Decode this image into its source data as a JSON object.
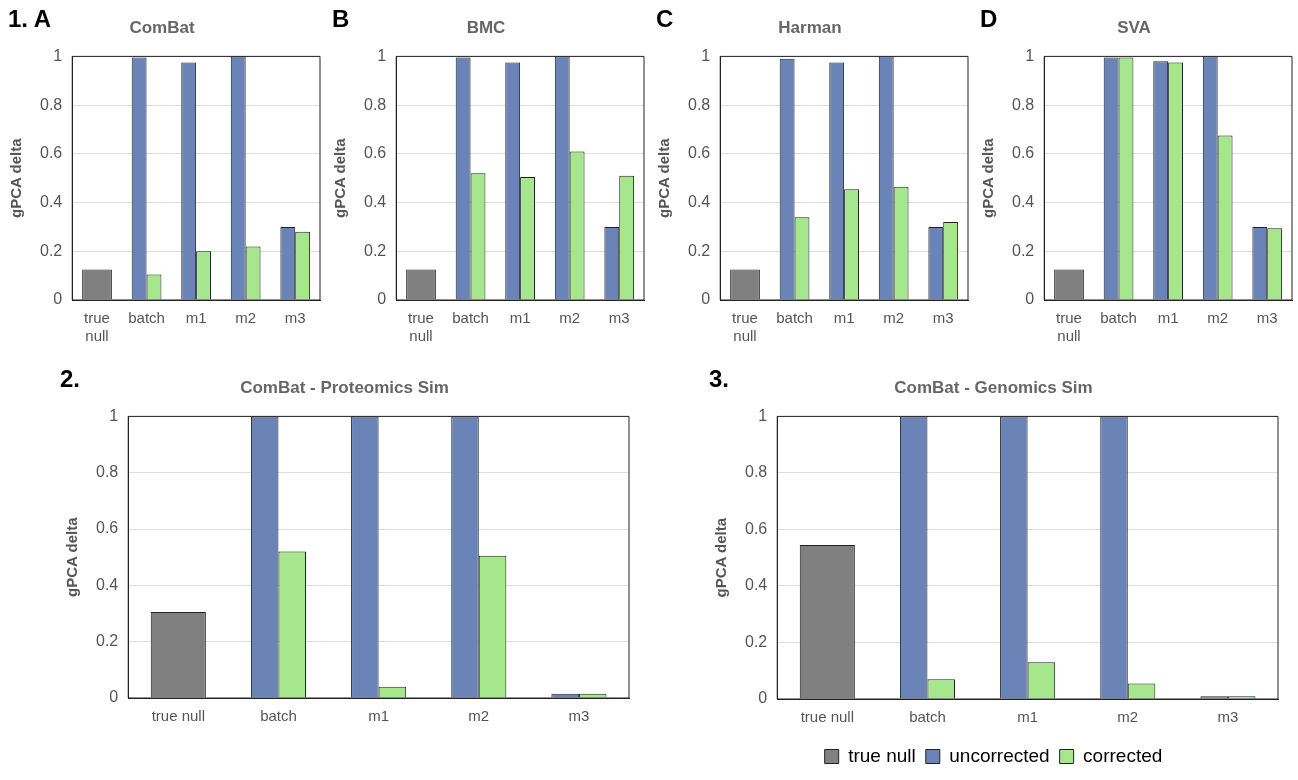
{
  "chart_data": [
    {
      "type": "bar",
      "title": "ComBat",
      "ylabel": "gPCA delta",
      "annotations": [
        "1. A"
      ],
      "categories": [
        "true null",
        "batch",
        "m1",
        "m2",
        "m3"
      ],
      "ylim": [
        0,
        1
      ],
      "yticks": [
        0,
        0.2,
        0.4,
        0.6,
        0.8,
        1
      ],
      "grid": "y",
      "series": [
        {
          "color": "#808080",
          "values": [
            0.125,
            null,
            null,
            null,
            null
          ]
        },
        {
          "color": "#6b84b8",
          "values": [
            null,
            0.995,
            0.975,
            1.0,
            0.3
          ]
        },
        {
          "color": "#a6e68c",
          "values": [
            null,
            0.105,
            0.2,
            0.22,
            0.28
          ]
        }
      ]
    },
    {
      "type": "bar",
      "title": "BMC",
      "ylabel": "gPCA delta",
      "annotations": [
        "B"
      ],
      "categories": [
        "true null",
        "batch",
        "m1",
        "m2",
        "m3"
      ],
      "ylim": [
        0,
        1
      ],
      "yticks": [
        0,
        0.2,
        0.4,
        0.6,
        0.8,
        1
      ],
      "grid": "y",
      "series": [
        {
          "color": "#808080",
          "values": [
            0.125,
            null,
            null,
            null,
            null
          ]
        },
        {
          "color": "#6b84b8",
          "values": [
            null,
            0.995,
            0.975,
            1.0,
            0.3
          ]
        },
        {
          "color": "#a6e68c",
          "values": [
            null,
            0.52,
            0.505,
            0.61,
            0.51
          ]
        }
      ]
    },
    {
      "type": "bar",
      "title": "Harman",
      "ylabel": "gPCA delta",
      "annotations": [
        "C"
      ],
      "categories": [
        "true null",
        "batch",
        "m1",
        "m2",
        "m3"
      ],
      "ylim": [
        0,
        1
      ],
      "yticks": [
        0,
        0.2,
        0.4,
        0.6,
        0.8,
        1
      ],
      "grid": "y",
      "series": [
        {
          "color": "#808080",
          "values": [
            0.125,
            null,
            null,
            null,
            null
          ]
        },
        {
          "color": "#6b84b8",
          "values": [
            null,
            0.99,
            0.975,
            1.0,
            0.3
          ]
        },
        {
          "color": "#a6e68c",
          "values": [
            null,
            0.34,
            0.455,
            0.465,
            0.32
          ]
        }
      ]
    },
    {
      "type": "bar",
      "title": "SVA",
      "ylabel": "gPCA delta",
      "annotations": [
        "D"
      ],
      "categories": [
        "true null",
        "batch",
        "m1",
        "m2",
        "m3"
      ],
      "ylim": [
        0,
        1
      ],
      "yticks": [
        0,
        0.2,
        0.4,
        0.6,
        0.8,
        1
      ],
      "grid": "y",
      "series": [
        {
          "color": "#808080",
          "values": [
            0.125,
            null,
            null,
            null,
            null
          ]
        },
        {
          "color": "#6b84b8",
          "values": [
            null,
            0.995,
            0.98,
            1.0,
            0.3
          ]
        },
        {
          "color": "#a6e68c",
          "values": [
            null,
            0.995,
            0.975,
            0.675,
            0.295
          ]
        }
      ]
    },
    {
      "type": "bar",
      "title": "ComBat - Proteomics Sim",
      "ylabel": "gPCA delta",
      "annotations": [
        "2."
      ],
      "categories": [
        "true null",
        "batch",
        "m1",
        "m2",
        "m3"
      ],
      "ylim": [
        0,
        1
      ],
      "yticks": [
        0,
        0.2,
        0.4,
        0.6,
        0.8,
        1
      ],
      "grid": "y",
      "series": [
        {
          "color": "#808080",
          "values": [
            0.305,
            null,
            null,
            null,
            null
          ]
        },
        {
          "color": "#6b84b8",
          "values": [
            null,
            1.0,
            1.0,
            1.0,
            0.015
          ]
        },
        {
          "color": "#a6e68c",
          "values": [
            null,
            0.52,
            0.04,
            0.505,
            0.015
          ]
        }
      ]
    },
    {
      "type": "bar",
      "title": "ComBat - Genomics Sim",
      "ylabel": "gPCA delta",
      "annotations": [
        "3."
      ],
      "categories": [
        "true null",
        "batch",
        "m1",
        "m2",
        "m3"
      ],
      "ylim": [
        0,
        1
      ],
      "yticks": [
        0,
        0.2,
        0.4,
        0.6,
        0.8,
        1
      ],
      "grid": "y",
      "legend": "bottom",
      "series": [
        {
          "name": "true null",
          "color": "#808080",
          "values": [
            0.545,
            null,
            null,
            null,
            null
          ]
        },
        {
          "name": "uncorrected",
          "color": "#6b84b8",
          "values": [
            null,
            1.0,
            1.0,
            1.0,
            0.01
          ]
        },
        {
          "name": "corrected",
          "color": "#a6e68c",
          "values": [
            null,
            0.07,
            0.13,
            0.055,
            0.01
          ]
        }
      ]
    }
  ]
}
